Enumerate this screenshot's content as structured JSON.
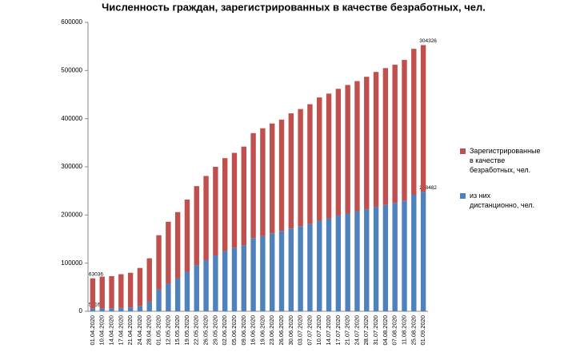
{
  "chart_data": {
    "type": "stacked_bar",
    "title": "Численность граждан, зарегистрированных в качестве безработных, чел.",
    "categories": [
      "01.04.2020",
      "10.04.2020",
      "14.04.2020",
      "17.04.2020",
      "21.04.2020",
      "24.04.2020",
      "28.04.2020",
      "01.05.2020",
      "12.05.2020",
      "15.05.2020",
      "19.05.2020",
      "22.05.2020",
      "26.05.2020",
      "29.05.2020",
      "02.06.2020",
      "05.06.2020",
      "09.06.2020",
      "16.06.2020",
      "19.06.2020",
      "23.06.2020",
      "26.06.2020",
      "30.06.2020",
      "03.07.2020",
      "07.07.2020",
      "10.07.2020",
      "14.07.2020",
      "17.07.2020",
      "21.07.2020",
      "24.07.2020",
      "28.07.2020",
      "31.07.2020",
      "04.08.2020",
      "07.08.2020",
      "11.08.2020",
      "25.08.2020",
      "01.09.2020"
    ],
    "series": [
      {
        "name": "из них дистанционно, чел.",
        "color": "#4f81bd",
        "values": [
          5516,
          6000,
          6000,
          7000,
          8000,
          11000,
          20000,
          45000,
          57000,
          68000,
          82000,
          96000,
          106000,
          116000,
          125000,
          132000,
          137000,
          152000,
          156000,
          162000,
          167000,
          172000,
          177000,
          181000,
          188000,
          193000,
          199000,
          203000,
          208000,
          212000,
          217000,
          221000,
          225000,
          230000,
          242000,
          248482
        ],
        "value_labels": [
          "5516",
          null,
          null,
          null,
          null,
          null,
          null,
          null,
          null,
          null,
          null,
          null,
          null,
          null,
          null,
          null,
          null,
          null,
          null,
          null,
          null,
          null,
          null,
          null,
          null,
          null,
          null,
          null,
          null,
          null,
          null,
          null,
          null,
          null,
          null,
          "248482"
        ]
      },
      {
        "name": "Зарегистрированные в качестве безработных, чел.",
        "color": "#c0504d",
        "values": [
          63036,
          66000,
          67000,
          70000,
          72000,
          79000,
          90000,
          113000,
          129000,
          138000,
          150000,
          164000,
          175000,
          184000,
          193000,
          197000,
          205000,
          218000,
          224000,
          228000,
          231000,
          239000,
          243000,
          249000,
          256000,
          259000,
          263000,
          267000,
          270000,
          275000,
          280000,
          284000,
          287000,
          292000,
          303000,
          304326
        ],
        "value_labels": [
          "63036",
          null,
          null,
          null,
          null,
          null,
          null,
          null,
          null,
          null,
          null,
          null,
          null,
          null,
          null,
          null,
          null,
          null,
          null,
          null,
          null,
          null,
          null,
          null,
          null,
          null,
          null,
          null,
          null,
          null,
          null,
          null,
          null,
          null,
          null,
          "304326"
        ]
      }
    ],
    "ylim": [
      0,
      600000
    ],
    "yticks": [
      0,
      100000,
      200000,
      300000,
      400000,
      500000,
      600000
    ],
    "grid": false,
    "legend": "right"
  }
}
